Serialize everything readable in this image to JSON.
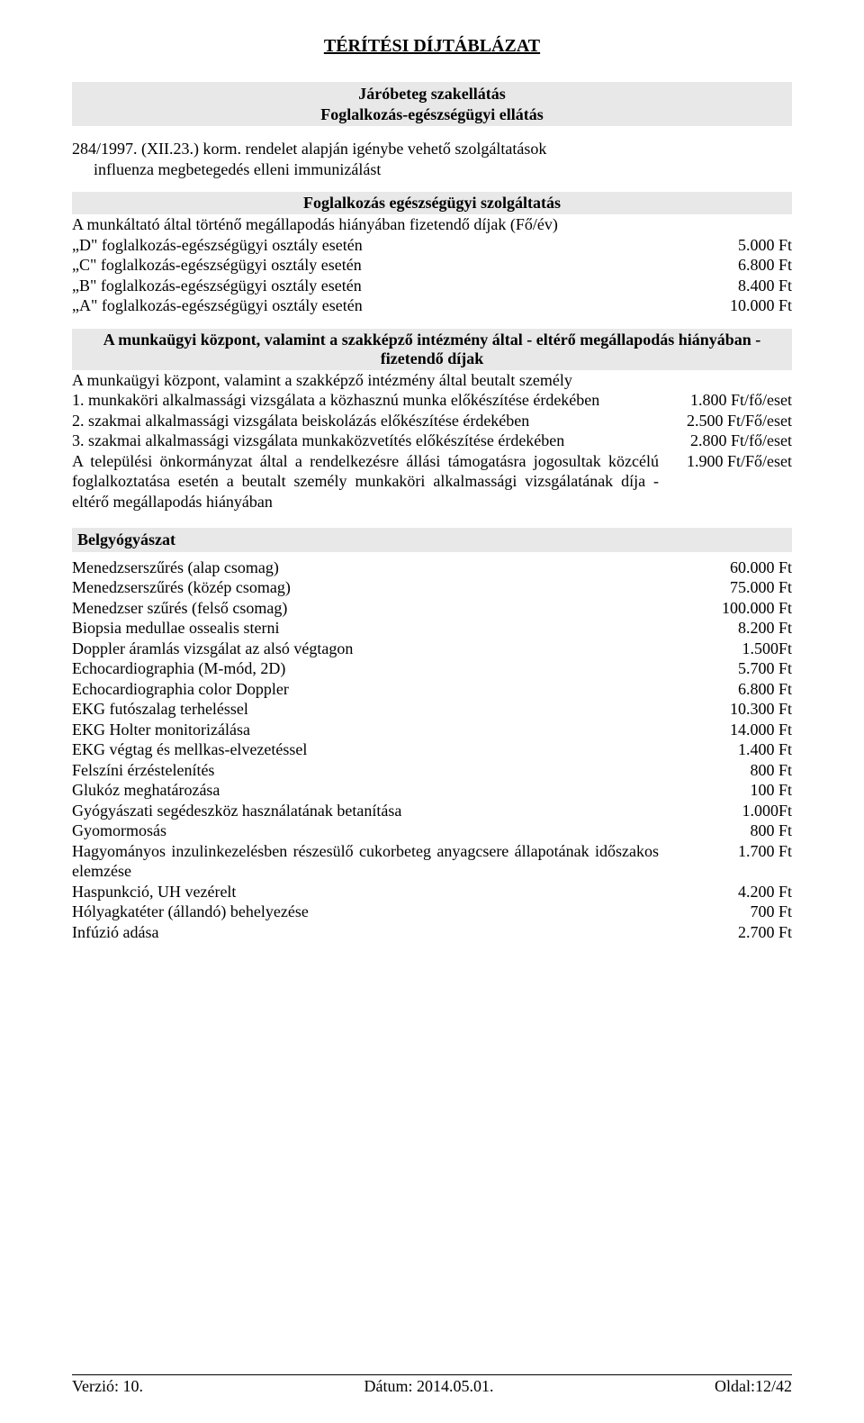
{
  "doc_title": "TÉRÍTÉSI DÍJTÁBLÁZAT",
  "header": {
    "line1": "Járóbeteg szakellátás",
    "line2": "Foglalkozás-egészségügyi ellátás",
    "line3": "284/1997. (XII.23.) korm. rendelet alapján igénybe vehető szolgáltatások",
    "line4": "influenza megbetegedés elleni immunizálást"
  },
  "section1": {
    "title": "Foglalkozás egészségügyi szolgáltatás",
    "intro": "A munkáltató által történő megállapodás hiányában fizetendő díjak (Fő/év)",
    "rows": [
      {
        "label": "„D\" foglalkozás-egészségügyi osztály esetén",
        "value": "5.000 Ft"
      },
      {
        "label": "„C\" foglalkozás-egészségügyi osztály esetén",
        "value": "6.800 Ft"
      },
      {
        "label": "„B\" foglalkozás-egészségügyi osztály esetén",
        "value": "8.400 Ft"
      },
      {
        "label": "„A\" foglalkozás-egészségügyi osztály esetén",
        "value": "10.000 Ft"
      }
    ]
  },
  "section2": {
    "title": "A munkaügyi központ, valamint a szakképző intézmény által - eltérő megállapodás hiányában - fizetendő díjak",
    "intro": "A munkaügyi központ, valamint a szakképző intézmény által beutalt személy",
    "rows": [
      {
        "label": "1. munkaköri alkalmassági vizsgálata a közhasznú munka előkészítése érdekében",
        "value": "1.800 Ft/fő/eset"
      },
      {
        "label": "2. szakmai alkalmassági vizsgálata beiskolázás előkészítése érdekében",
        "value": "2.500 Ft/Fő/eset"
      },
      {
        "label": "3. szakmai alkalmassági vizsgálata munkaközvetítés előkészítése érdekében",
        "value": "2.800 Ft/fő/eset"
      },
      {
        "label": "A települési önkormányzat által a rendelkezésre állási támogatásra jogosultak közcélú foglalkoztatása esetén a beutalt személy munkaköri alkalmassági vizsgálatának díja - eltérő megállapodás hiányában",
        "value": "1.900 Ft/Fő/eset"
      }
    ]
  },
  "section3": {
    "title": "Belgyógyászat",
    "rows": [
      {
        "label": "Menedzserszűrés (alap csomag)",
        "value": "60.000 Ft"
      },
      {
        "label": "Menedzserszűrés (közép csomag)",
        "value": "75.000 Ft"
      },
      {
        "label": "Menedzser szűrés (felső csomag)",
        "value": "100.000 Ft"
      },
      {
        "label": "Biopsia medullae ossealis sterni",
        "value": "8.200 Ft"
      },
      {
        "label": "Doppler áramlás vizsgálat az alsó végtagon",
        "value": "1.500Ft"
      },
      {
        "label": "Echocardiographia (M-mód, 2D)",
        "value": "5.700 Ft"
      },
      {
        "label": "Echocardiographia color Doppler",
        "value": "6.800 Ft"
      },
      {
        "label": "EKG futószalag terheléssel",
        "value": "10.300 Ft"
      },
      {
        "label": "EKG Holter monitorizálása",
        "value": "14.000 Ft"
      },
      {
        "label": "EKG végtag és mellkas-elvezetéssel",
        "value": "1.400 Ft"
      },
      {
        "label": "Felszíni érzéstelenítés",
        "value": "800 Ft"
      },
      {
        "label": "Glukóz meghatározása",
        "value": "100 Ft"
      },
      {
        "label": "Gyógyászati segédeszköz használatának betanítása",
        "value": "1.000Ft"
      },
      {
        "label": "Gyomormosás",
        "value": "800 Ft"
      },
      {
        "label": "Hagyományos inzulinkezelésben részesülő cukorbeteg anyagcsere állapotának időszakos elemzése",
        "value": "1.700 Ft"
      },
      {
        "label": "Haspunkció, UH vezérelt",
        "value": "4.200 Ft"
      },
      {
        "label": "Hólyagkatéter (állandó) behelyezése",
        "value": "700 Ft"
      },
      {
        "label": "Infúzió adása",
        "value": "2.700 Ft"
      }
    ]
  },
  "footer": {
    "left": "Verzió: 10.",
    "center": "Dátum: 2014.05.01.",
    "right": "Oldal:12/42"
  }
}
